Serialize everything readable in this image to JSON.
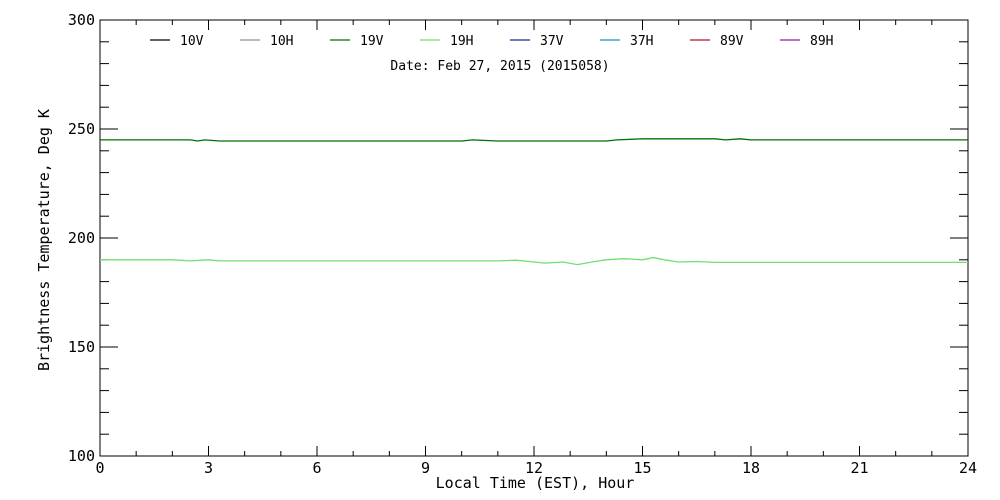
{
  "chart_data": {
    "type": "line",
    "subtitle": "Date: Feb 27, 2015 (2015058)",
    "xlabel": "Local Time (EST), Hour",
    "ylabel": "Brightness Temperature, Deg K",
    "xlim": [
      0,
      24
    ],
    "ylim": [
      100,
      300
    ],
    "xticks": [
      0,
      3,
      6,
      9,
      12,
      15,
      18,
      21,
      24
    ],
    "yticks": [
      100,
      150,
      200,
      250,
      300
    ],
    "grid": false,
    "legend_position": "top",
    "legend": [
      {
        "name": "10V",
        "color": "#000000"
      },
      {
        "name": "10H",
        "color": "#909090"
      },
      {
        "name": "19V",
        "color": "#007000"
      },
      {
        "name": "19H",
        "color": "#70e070"
      },
      {
        "name": "37V",
        "color": "#20208f"
      },
      {
        "name": "37H",
        "color": "#2090c0"
      },
      {
        "name": "89V",
        "color": "#b01030"
      },
      {
        "name": "89H",
        "color": "#9020a0"
      }
    ],
    "series": [
      {
        "name": "19V",
        "color": "#007000",
        "x": [
          0,
          1,
          2,
          2.5,
          2.7,
          2.9,
          3.3,
          4,
          6,
          8,
          10,
          10.3,
          11,
          12,
          13,
          14,
          14.3,
          15,
          16,
          17,
          17.3,
          17.7,
          18,
          20,
          22,
          24
        ],
        "y": [
          245,
          245,
          245,
          245,
          244.5,
          245,
          244.5,
          244.5,
          244.5,
          244.5,
          244.5,
          245,
          244.5,
          244.5,
          244.5,
          244.5,
          245,
          245.5,
          245.5,
          245.5,
          245,
          245.5,
          245,
          245,
          245,
          245
        ]
      },
      {
        "name": "19H",
        "color": "#70e070",
        "x": [
          0,
          1,
          2,
          2.5,
          3,
          3.3,
          4,
          6,
          8,
          10,
          11,
          11.5,
          12,
          12.3,
          12.8,
          13.2,
          13.6,
          14,
          14.5,
          15,
          15.3,
          15.6,
          16,
          16.5,
          17,
          18,
          20,
          22,
          24
        ],
        "y": [
          190,
          190,
          190,
          189.5,
          190,
          189.5,
          189.5,
          189.5,
          189.5,
          189.5,
          189.5,
          189.8,
          189,
          188.5,
          189,
          187.8,
          189,
          190,
          190.5,
          190,
          191,
          190,
          189,
          189.2,
          188.8,
          188.8,
          188.8,
          188.8,
          188.8
        ]
      }
    ]
  }
}
